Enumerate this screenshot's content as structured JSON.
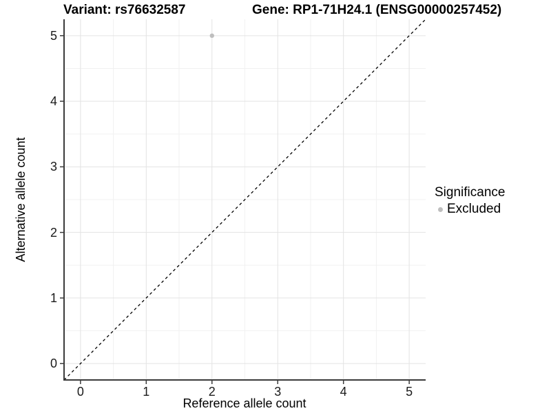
{
  "chart_data": {
    "type": "scatter",
    "title_left": "Variant: rs76632587",
    "title_right": "Gene: RP1-71H24.1 (ENSG00000257452)",
    "xlabel": "Reference allele count",
    "ylabel": "Alternative allele count",
    "x_ticks": [
      0,
      1,
      2,
      3,
      4,
      5
    ],
    "y_ticks": [
      0,
      1,
      2,
      3,
      4,
      5
    ],
    "xlim": [
      -0.25,
      5.25
    ],
    "ylim": [
      -0.25,
      5.25
    ],
    "grid": "major and minor (0.5-unit steps) on white panel",
    "points": [
      {
        "x": 2,
        "y": 5,
        "significance": "Excluded"
      }
    ],
    "identity_line": {
      "from": [
        -0.25,
        -0.25
      ],
      "to": [
        5.25,
        5.25
      ],
      "style": "dashed",
      "meaning": "y = x"
    },
    "legend": {
      "title": "Significance",
      "position": "right-middle",
      "items": [
        {
          "label": "Excluded",
          "marker": "dot"
        }
      ]
    }
  },
  "colors": {
    "background": "#FFFFFF",
    "point_excluded": "#BEBEBE",
    "grid_major": "#E3E3E3",
    "grid_minor": "#F1F1F1",
    "axis_line": "#3a3a3a",
    "tick_mark": "#3a3a3a",
    "identity_line": "#000000",
    "text": "#000000"
  }
}
